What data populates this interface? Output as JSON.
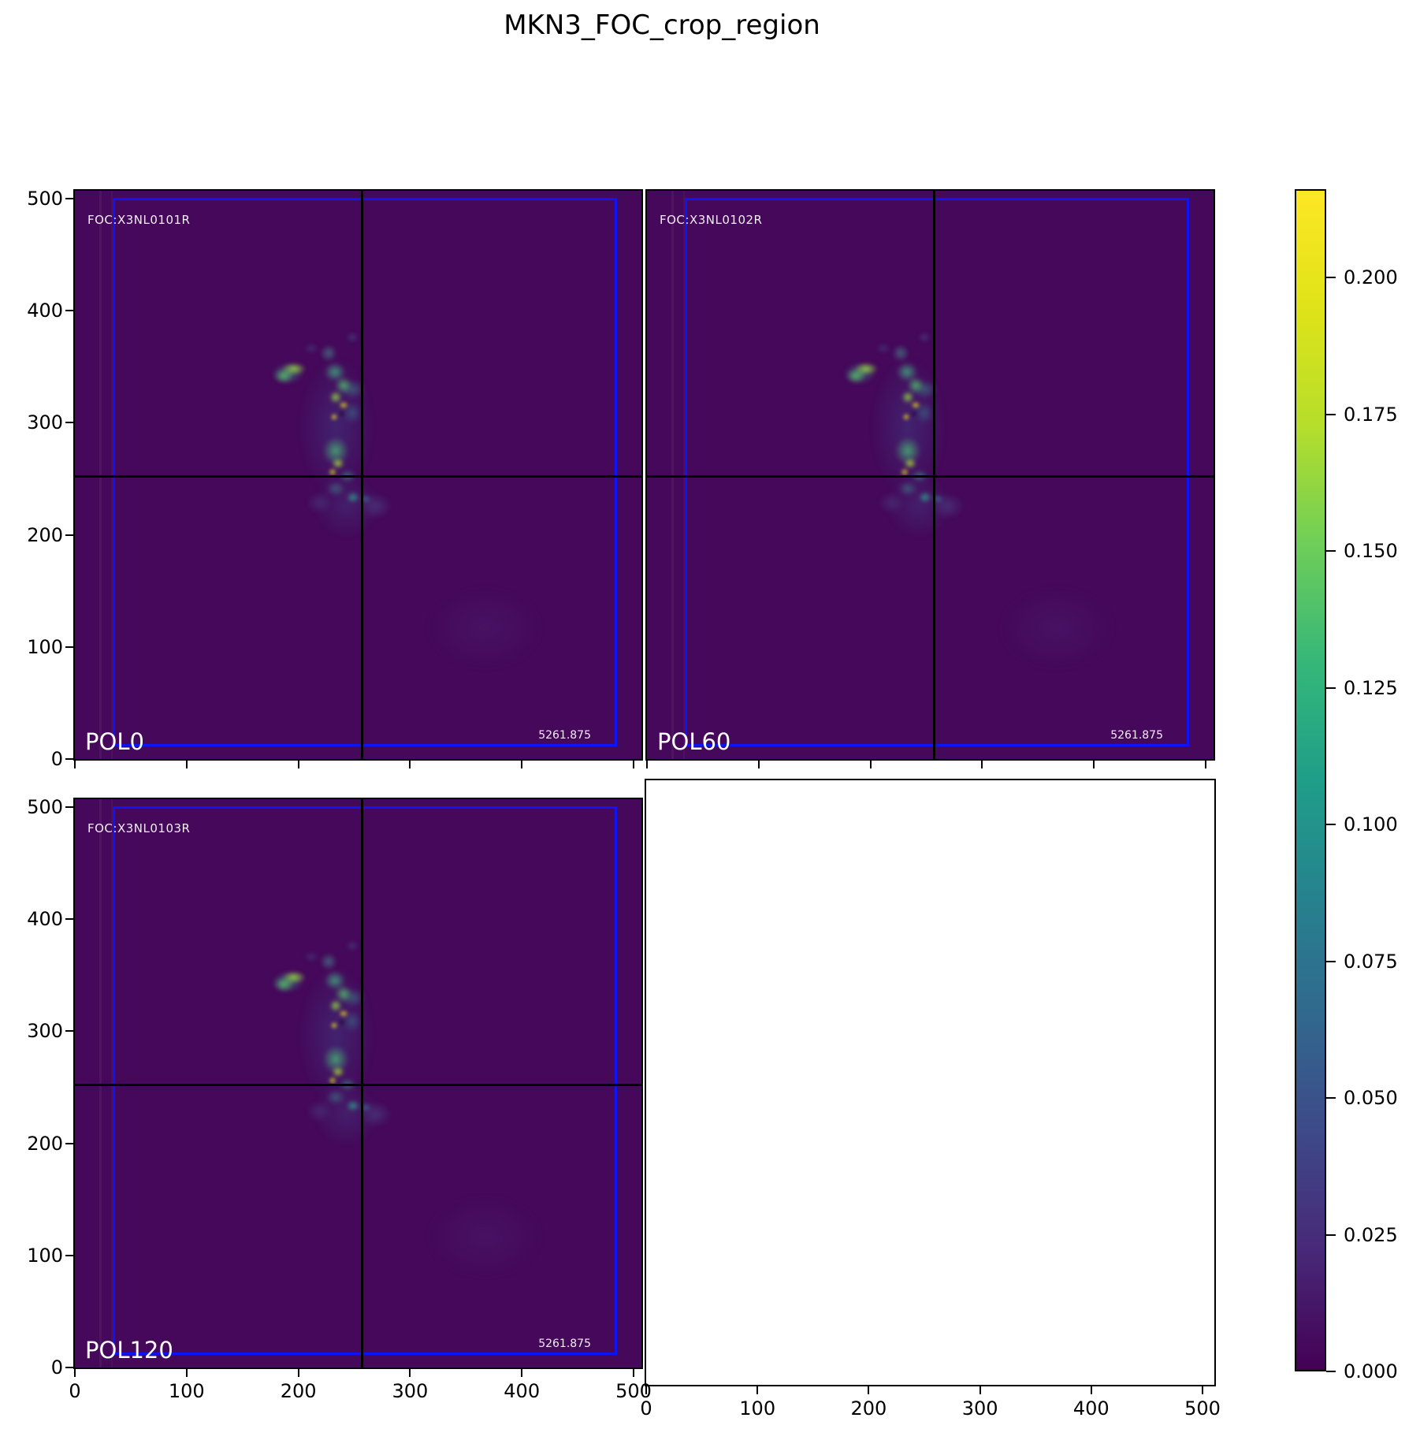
{
  "figure": {
    "title": "MKN3_FOC_crop_region",
    "background_color": "#ffffff"
  },
  "panels": [
    {
      "label": "POL0",
      "foc_label": "FOC:X3NL0101R",
      "value_label": "5261.875"
    },
    {
      "label": "POL60",
      "foc_label": "FOC:X3NL0102R",
      "value_label": "5261.875"
    },
    {
      "label": "POL120",
      "foc_label": "FOC:X3NL0103R",
      "value_label": "5261.875"
    }
  ],
  "axes": {
    "x_tick_labels": [
      "0",
      "100",
      "200",
      "300",
      "400",
      "500"
    ],
    "y_tick_labels": [
      "0",
      "100",
      "200",
      "300",
      "400",
      "500"
    ]
  },
  "colorbar": {
    "tick_labels": [
      "0.000",
      "0.025",
      "0.050",
      "0.075",
      "0.100",
      "0.125",
      "0.150",
      "0.175",
      "0.200"
    ],
    "colormap": "viridis",
    "vmin": 0.0,
    "vmax": 0.216
  },
  "colors": {
    "image_background": "#45085a",
    "overlay_box_blue": "#0d14f5",
    "crosshair": "#000000",
    "viridis_stops": [
      "#440154",
      "#482878",
      "#3e4989",
      "#31688e",
      "#26828e",
      "#1f9e89",
      "#35b779",
      "#6ece58",
      "#b5de2b",
      "#dfe318",
      "#fde725"
    ]
  },
  "chart_data": {
    "type": "heatmap",
    "title": "MKN3_FOC_crop_region",
    "layout": "2x2 grid of image subplots; bottom-right subplot empty; shared vertical colorbar at right",
    "x_ticks": [
      0,
      100,
      200,
      300,
      400,
      500
    ],
    "y_ticks": [
      0,
      100,
      200,
      300,
      400,
      500
    ],
    "x_range": [
      0,
      510
    ],
    "y_range": [
      0,
      510
    ],
    "subplots": [
      {
        "position": "top-left",
        "label": "POL0",
        "header": "FOC:X3NL0101R",
        "annotation": "5261.875",
        "crosshair_x": 257,
        "crosshair_y": 255,
        "overlay_box": {
          "x0": 33,
          "y0": 13,
          "x1": 484,
          "y1": 503
        },
        "content": "Dark purple FOC image of MKN3 with bright green/teal S-shaped emission arc spanning approx x=190-260, y=230-370, brightest knots near (230,307) and (237,317)"
      },
      {
        "position": "top-right",
        "label": "POL60",
        "header": "FOC:X3NL0102R",
        "annotation": "5261.875",
        "crosshair_x": 257,
        "crosshair_y": 255,
        "overlay_box": {
          "x0": 33,
          "y0": 13,
          "x1": 484,
          "y1": 503
        },
        "content": "Same field as POL0, same emission arc morphology"
      },
      {
        "position": "bottom-left",
        "label": "POL120",
        "header": "FOC:X3NL0103R",
        "annotation": "5261.875",
        "crosshair_x": 257,
        "crosshair_y": 255,
        "overlay_box": {
          "x0": 33,
          "y0": 13,
          "x1": 484,
          "y1": 503
        },
        "content": "Same field as POL0, same emission arc morphology"
      },
      {
        "position": "bottom-right",
        "label": "",
        "empty": true,
        "content": "Empty white axes with x ticks 0-500"
      }
    ],
    "colorbar": {
      "vmin": 0.0,
      "vmax": 0.216,
      "ticks": [
        0.0,
        0.025,
        0.05,
        0.075,
        0.1,
        0.125,
        0.15,
        0.175,
        0.2
      ],
      "colormap": "viridis",
      "legend_position": "right"
    }
  }
}
